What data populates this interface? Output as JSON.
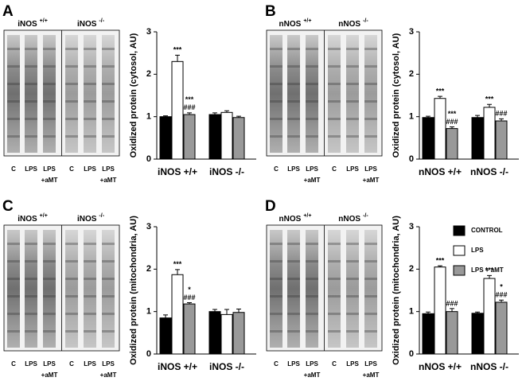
{
  "series_styles": [
    {
      "name": "CONTROL",
      "color": "#000000"
    },
    {
      "name": "LPS",
      "color": "#ffffff"
    },
    {
      "name": "LPS + aMT",
      "color": "#999999"
    }
  ],
  "chart_data": [
    {
      "type": "bar",
      "panel": "A",
      "blot_titles": [
        {
          "name": "iNOS",
          "genotype": "+/+"
        },
        {
          "name": "iNOS",
          "genotype": "-/-"
        }
      ],
      "lane_labels": [
        [
          "C"
        ],
        [
          "LPS"
        ],
        [
          "LPS",
          "+aMT"
        ]
      ],
      "y_label": "Oxidized protein (cytosol, AU)",
      "categories": [
        "iNOS +/+",
        "iNOS -/-"
      ],
      "ylim": [
        0,
        3
      ],
      "yticks": [
        0,
        1,
        2,
        3
      ],
      "series": [
        {
          "values": [
            1.0,
            1.05
          ],
          "errors": [
            0.02,
            0.04
          ]
        },
        {
          "values": [
            2.3,
            1.1
          ],
          "errors": [
            0.15,
            0.04
          ]
        },
        {
          "values": [
            1.05,
            0.98
          ],
          "errors": [
            0.04,
            0.03
          ]
        }
      ],
      "annotations": [
        {
          "series": 1,
          "category": 0,
          "lines": [
            "***"
          ]
        },
        {
          "series": 2,
          "category": 0,
          "lines": [
            "***",
            "###"
          ]
        }
      ]
    },
    {
      "type": "bar",
      "panel": "B",
      "blot_titles": [
        {
          "name": "nNOS",
          "genotype": "+/+"
        },
        {
          "name": "nNOS",
          "genotype": "-/-"
        }
      ],
      "lane_labels": [
        [
          "C"
        ],
        [
          "LPS"
        ],
        [
          "LPS",
          "+aMT"
        ]
      ],
      "y_label": "Oxidized protein (cytosol, AU)",
      "categories": [
        "nNOS +/+",
        "nNOS -/-"
      ],
      "ylim": [
        0,
        3
      ],
      "yticks": [
        0,
        1,
        2,
        3
      ],
      "series": [
        {
          "values": [
            0.98,
            0.98
          ],
          "errors": [
            0.03,
            0.05
          ]
        },
        {
          "values": [
            1.43,
            1.22
          ],
          "errors": [
            0.05,
            0.07
          ]
        },
        {
          "values": [
            0.72,
            0.9
          ],
          "errors": [
            0.04,
            0.05
          ]
        }
      ],
      "annotations": [
        {
          "series": 1,
          "category": 0,
          "lines": [
            "***"
          ]
        },
        {
          "series": 2,
          "category": 0,
          "lines": [
            "***",
            "###"
          ]
        },
        {
          "series": 1,
          "category": 1,
          "lines": [
            "***"
          ]
        },
        {
          "series": 2,
          "category": 1,
          "lines": [
            "###"
          ]
        }
      ]
    },
    {
      "type": "bar",
      "panel": "C",
      "blot_titles": [
        {
          "name": "iNOS",
          "genotype": "+/+"
        },
        {
          "name": "iNOS",
          "genotype": "-/-"
        }
      ],
      "lane_labels": [
        [
          "C"
        ],
        [
          "LPS"
        ],
        [
          "LPS",
          "+aMT"
        ]
      ],
      "y_label": "Oxidized protein (mitochondria, AU)",
      "categories": [
        "iNOS +/+",
        "iNOS -/-"
      ],
      "ylim": [
        0,
        3
      ],
      "yticks": [
        0,
        1,
        2,
        3
      ],
      "series": [
        {
          "values": [
            0.85,
            1.0
          ],
          "errors": [
            0.07,
            0.05
          ]
        },
        {
          "values": [
            1.87,
            0.93
          ],
          "errors": [
            0.12,
            0.12
          ]
        },
        {
          "values": [
            1.18,
            0.98
          ],
          "errors": [
            0.03,
            0.08
          ]
        }
      ],
      "annotations": [
        {
          "series": 1,
          "category": 0,
          "lines": [
            "***"
          ]
        },
        {
          "series": 2,
          "category": 0,
          "lines": [
            "*",
            "###"
          ]
        }
      ]
    },
    {
      "type": "bar",
      "panel": "D",
      "legend": true,
      "blot_titles": [
        {
          "name": "nNOS",
          "genotype": "+/+"
        },
        {
          "name": "nNOS",
          "genotype": "-/-"
        }
      ],
      "lane_labels": [
        [
          "C"
        ],
        [
          "LPS"
        ],
        [
          "LPS",
          "+aMT"
        ]
      ],
      "y_label": "Oxidized protein (mitochondria, AU)",
      "categories": [
        "nNOS +/+",
        "nNOS -/-"
      ],
      "ylim": [
        0,
        3
      ],
      "yticks": [
        0,
        1,
        2,
        3
      ],
      "series": [
        {
          "values": [
            0.95,
            0.96
          ],
          "errors": [
            0.04,
            0.03
          ]
        },
        {
          "values": [
            2.05,
            1.78
          ],
          "errors": [
            0.03,
            0.07
          ]
        },
        {
          "values": [
            1.0,
            1.22
          ],
          "errors": [
            0.07,
            0.05
          ]
        }
      ],
      "annotations": [
        {
          "series": 1,
          "category": 0,
          "lines": [
            "***"
          ]
        },
        {
          "series": 2,
          "category": 0,
          "lines": [
            "###"
          ]
        },
        {
          "series": 1,
          "category": 1,
          "lines": [
            "***"
          ]
        },
        {
          "series": 2,
          "category": 1,
          "lines": [
            "*",
            "###"
          ]
        }
      ]
    }
  ]
}
